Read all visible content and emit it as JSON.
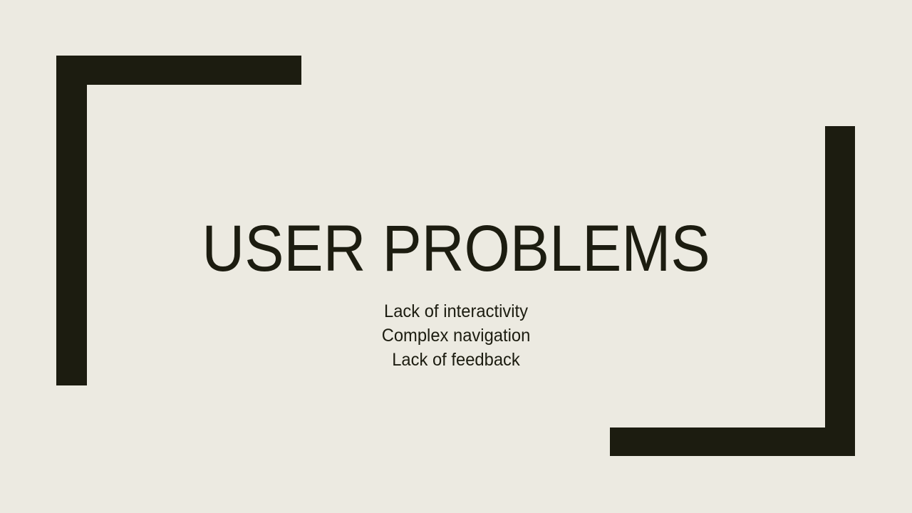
{
  "slide": {
    "title": "USER PROBLEMS",
    "subtitle_lines": [
      "Lack of interactivity",
      "Complex navigation",
      "Lack of feedback"
    ]
  },
  "colors": {
    "background": "#ECEAE1",
    "accent": "#1C1C10",
    "text": "#1C1C10"
  }
}
